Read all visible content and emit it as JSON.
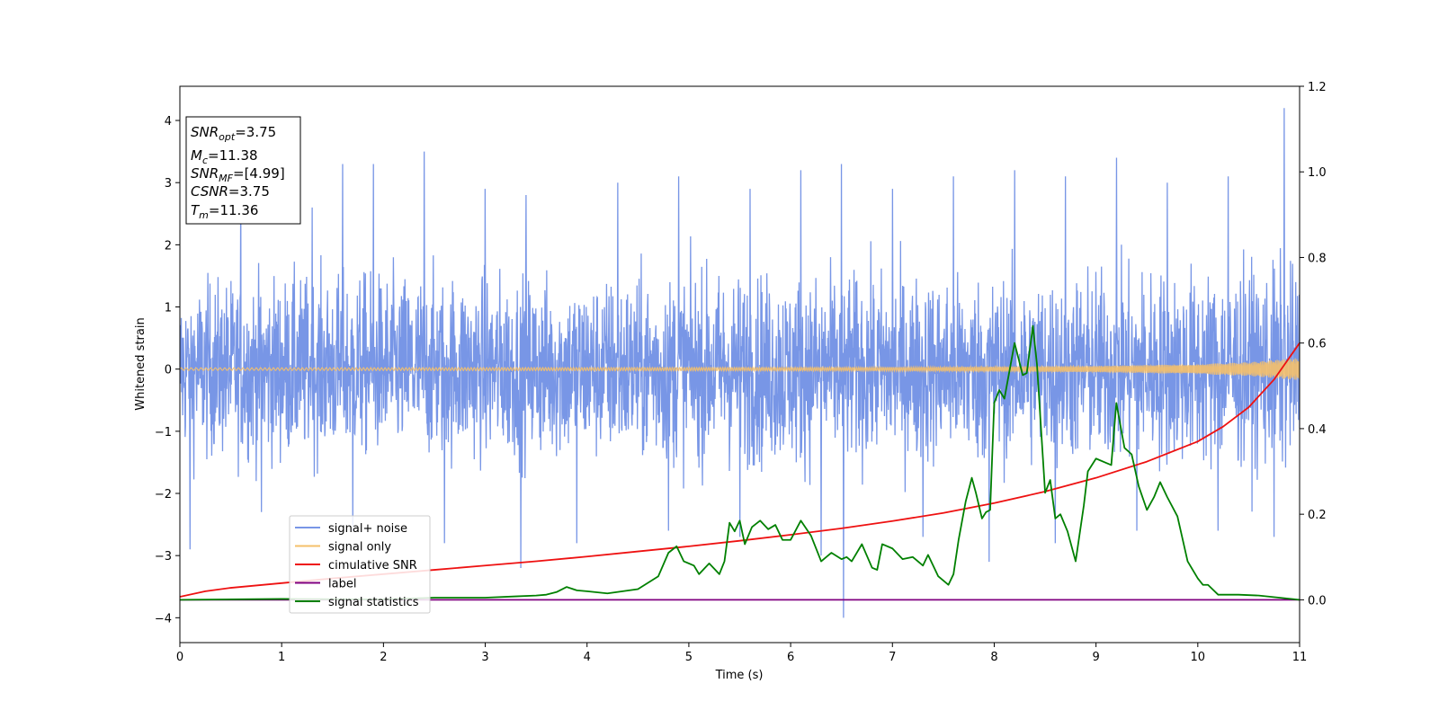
{
  "chart_data": {
    "type": "line",
    "xlabel": "Time (s)",
    "ylabel": "Whitened strain",
    "xlim": [
      0,
      11
    ],
    "ylim": [
      -4.4,
      4.55
    ],
    "y2lim": [
      -0.1,
      1.2
    ],
    "x_ticks": [
      "0",
      "1",
      "2",
      "3",
      "4",
      "5",
      "6",
      "7",
      "8",
      "9",
      "10",
      "11"
    ],
    "y_ticks": [
      "4",
      "3",
      "2",
      "1",
      "0",
      "−1",
      "−2",
      "−3",
      "−4"
    ],
    "y2_ticks": [
      "1.2",
      "1.0",
      "0.8",
      "0.6",
      "0.4",
      "0.2",
      "0.0"
    ],
    "grid": false,
    "legend_position": "lower-left",
    "annotation": {
      "snr_opt": {
        "base": "SNR",
        "sub": "opt",
        "value": "=3.75"
      },
      "mc": {
        "base": "M",
        "sub": "c",
        "value": "=11.38"
      },
      "snr_mf": {
        "base": "SNR",
        "sub": "MF",
        "value": "=[4.99]"
      },
      "csnr": {
        "base": "CSNR",
        "sub": "",
        "value": "=3.75"
      },
      "tm": {
        "base": "T",
        "sub": "m",
        "value": "=11.36"
      }
    },
    "series": [
      {
        "name": "signal+ noise",
        "color": "#7896e6",
        "axis": "left",
        "envelope_x": [
          0,
          1,
          2,
          3,
          4,
          5,
          6,
          7,
          8,
          9,
          10,
          11
        ],
        "envelope_upper": [
          2.2,
          2.3,
          2.4,
          2.4,
          2.3,
          2.4,
          2.4,
          2.4,
          2.3,
          2.5,
          2.5,
          2.6
        ],
        "envelope_lower": [
          -2.2,
          -2.3,
          -2.2,
          -2.3,
          -2.3,
          -2.4,
          -2.5,
          -2.4,
          -2.4,
          -2.4,
          -2.5,
          -2.5
        ],
        "peak_x": [
          0.1,
          0.6,
          1.3,
          1.6,
          1.9,
          2.4,
          3.0,
          3.4,
          4.3,
          4.9,
          5.6,
          6.1,
          6.5,
          7.0,
          7.6,
          8.2,
          8.7,
          9.2,
          9.7,
          10.3,
          10.85
        ],
        "peak_y": [
          3.0,
          3.0,
          2.6,
          3.3,
          3.3,
          3.5,
          2.9,
          2.8,
          3.0,
          3.1,
          2.9,
          3.2,
          3.3,
          2.9,
          3.1,
          3.2,
          3.1,
          3.4,
          3.0,
          3.1,
          4.2
        ],
        "trough_x": [
          0.1,
          0.8,
          1.7,
          2.6,
          3.35,
          3.9,
          4.8,
          5.5,
          6.3,
          6.52,
          7.3,
          7.95,
          8.6,
          9.4,
          10.2,
          10.75
        ],
        "trough_y": [
          -2.9,
          -2.3,
          -2.6,
          -2.8,
          -3.2,
          -2.8,
          -2.6,
          -2.7,
          -3.0,
          -4.0,
          -2.7,
          -3.1,
          -2.8,
          -2.6,
          -2.6,
          -2.7
        ]
      },
      {
        "name": "signal only",
        "color": "#f5c06a",
        "axis": "left",
        "amplitude_x": [
          0,
          7,
          8,
          9,
          10,
          10.5,
          11
        ],
        "amplitude": [
          0.02,
          0.03,
          0.04,
          0.05,
          0.08,
          0.11,
          0.18
        ]
      },
      {
        "name": "cimulative SNR",
        "color": "#ee1111",
        "axis": "right",
        "x": [
          0,
          0.25,
          0.5,
          1,
          1.5,
          2,
          2.5,
          3,
          3.5,
          4,
          4.5,
          5,
          5.5,
          6,
          6.5,
          7,
          7.5,
          8,
          8.5,
          9,
          9.5,
          10,
          10.25,
          10.5,
          10.75,
          11
        ],
        "y": [
          0.007,
          0.02,
          0.028,
          0.039,
          0.05,
          0.06,
          0.07,
          0.08,
          0.09,
          0.101,
          0.113,
          0.125,
          0.138,
          0.152,
          0.167,
          0.184,
          0.203,
          0.226,
          0.253,
          0.285,
          0.323,
          0.37,
          0.405,
          0.45,
          0.515,
          0.6
        ]
      },
      {
        "name": "label",
        "color": "#800080",
        "axis": "right",
        "x": [
          0,
          11
        ],
        "y": [
          0.0,
          0.0
        ]
      },
      {
        "name": "signal statistics",
        "color": "#008000",
        "axis": "right",
        "x": [
          0,
          1,
          2,
          2.5,
          3,
          3.3,
          3.5,
          3.6,
          3.7,
          3.8,
          3.9,
          4,
          4.2,
          4.5,
          4.7,
          4.8,
          4.88,
          4.95,
          5.05,
          5.1,
          5.2,
          5.3,
          5.35,
          5.4,
          5.45,
          5.5,
          5.55,
          5.62,
          5.7,
          5.78,
          5.85,
          5.92,
          6.0,
          6.1,
          6.2,
          6.3,
          6.4,
          6.5,
          6.55,
          6.6,
          6.7,
          6.8,
          6.85,
          6.9,
          7.0,
          7.1,
          7.2,
          7.3,
          7.35,
          7.45,
          7.55,
          7.6,
          7.65,
          7.72,
          7.78,
          7.82,
          7.88,
          7.92,
          7.96,
          8.0,
          8.05,
          8.1,
          8.2,
          8.28,
          8.32,
          8.38,
          8.42,
          8.5,
          8.55,
          8.6,
          8.65,
          8.72,
          8.8,
          8.88,
          8.92,
          9.0,
          9.1,
          9.15,
          9.2,
          9.28,
          9.35,
          9.42,
          9.5,
          9.57,
          9.63,
          9.7,
          9.8,
          9.9,
          10.0,
          10.05,
          10.1,
          10.2,
          10.4,
          10.6,
          10.8,
          11
        ],
        "y": [
          0.0,
          0.002,
          0.001,
          0.005,
          0.005,
          0.008,
          0.01,
          0.012,
          0.018,
          0.03,
          0.022,
          0.02,
          0.015,
          0.025,
          0.055,
          0.11,
          0.125,
          0.09,
          0.08,
          0.06,
          0.085,
          0.06,
          0.09,
          0.18,
          0.16,
          0.185,
          0.13,
          0.17,
          0.185,
          0.165,
          0.175,
          0.14,
          0.14,
          0.185,
          0.15,
          0.09,
          0.11,
          0.095,
          0.1,
          0.09,
          0.13,
          0.075,
          0.07,
          0.13,
          0.12,
          0.095,
          0.1,
          0.08,
          0.105,
          0.055,
          0.035,
          0.06,
          0.14,
          0.23,
          0.285,
          0.25,
          0.19,
          0.205,
          0.21,
          0.46,
          0.49,
          0.47,
          0.6,
          0.525,
          0.53,
          0.64,
          0.55,
          0.25,
          0.28,
          0.19,
          0.2,
          0.16,
          0.09,
          0.22,
          0.3,
          0.33,
          0.32,
          0.315,
          0.46,
          0.355,
          0.34,
          0.265,
          0.21,
          0.24,
          0.275,
          0.24,
          0.195,
          0.09,
          0.05,
          0.035,
          0.035,
          0.012,
          0.012,
          0.01,
          0.005,
          0.0
        ]
      }
    ]
  }
}
